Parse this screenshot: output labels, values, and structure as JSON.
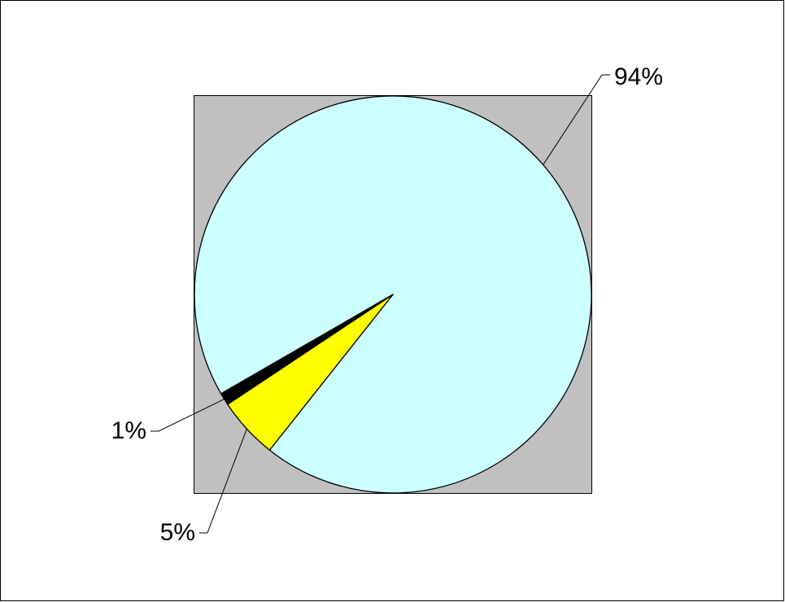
{
  "chart_data": {
    "type": "pie",
    "values": [
      94,
      5,
      1
    ],
    "value_labels": [
      "94%",
      "5%",
      "1%"
    ],
    "colors": [
      "#ccffff",
      "#ffff00",
      "#000000"
    ]
  }
}
